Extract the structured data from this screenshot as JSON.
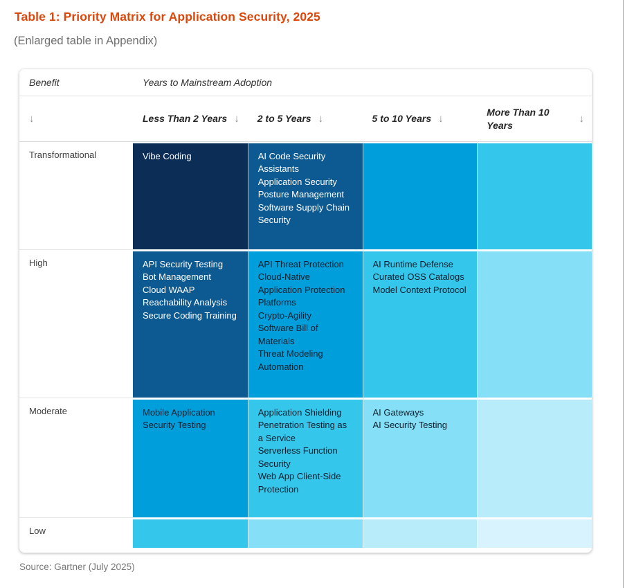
{
  "page": {
    "title": "Table 1: Priority Matrix for Application Security, 2025",
    "subtitle": "(Enlarged table in Appendix)",
    "source": "Source: Gartner (July 2025)"
  },
  "matrix": {
    "corner_label": "Benefit",
    "group_header": "Years to Mainstream Adoption",
    "sort_arrow": "↓",
    "columns": [
      "Less Than 2 Years",
      "2 to 5 Years",
      "5 to 10 Years",
      "More Than 10 Years"
    ],
    "rows": [
      {
        "label": "Transformational",
        "cells": [
          [
            "Vibe Coding"
          ],
          [
            "AI Code Security Assistants",
            "Application Security Posture Management",
            "Software Supply Chain Security"
          ],
          [],
          []
        ]
      },
      {
        "label": "High",
        "cells": [
          [
            "API Security Testing",
            "Bot Management",
            "Cloud WAAP",
            "Reachability Analysis",
            "Secure Coding Training"
          ],
          [
            "API Threat Protection",
            "Cloud-Native Application Protection Platforms",
            "Crypto-Agility",
            "Software Bill of Materials",
            "Threat Modeling Automation"
          ],
          [
            "AI Runtime Defense",
            "Curated OSS Catalogs",
            "Model Context Protocol"
          ],
          []
        ]
      },
      {
        "label": "Moderate",
        "cells": [
          [
            "Mobile Application Security Testing"
          ],
          [
            "Application Shielding",
            "Penetration Testing as a Service",
            "Serverless Function Security",
            "Web App Client-Side Protection"
          ],
          [
            "AI Gateways",
            "AI Security Testing"
          ],
          []
        ]
      },
      {
        "label": "Low",
        "cells": [
          [],
          [],
          [],
          []
        ]
      }
    ],
    "colors": {
      "title_accent": "#DC470B",
      "cell_levels_dark_to_light": [
        "#0C2D55",
        "#0D5991",
        "#009FDB",
        "#35C7EB",
        "#85DFF7",
        "#B8ECFB",
        "#D8F3FD"
      ],
      "light_cell_text": "#0d1f2d",
      "dark_cell_text": "#ffffff"
    }
  }
}
